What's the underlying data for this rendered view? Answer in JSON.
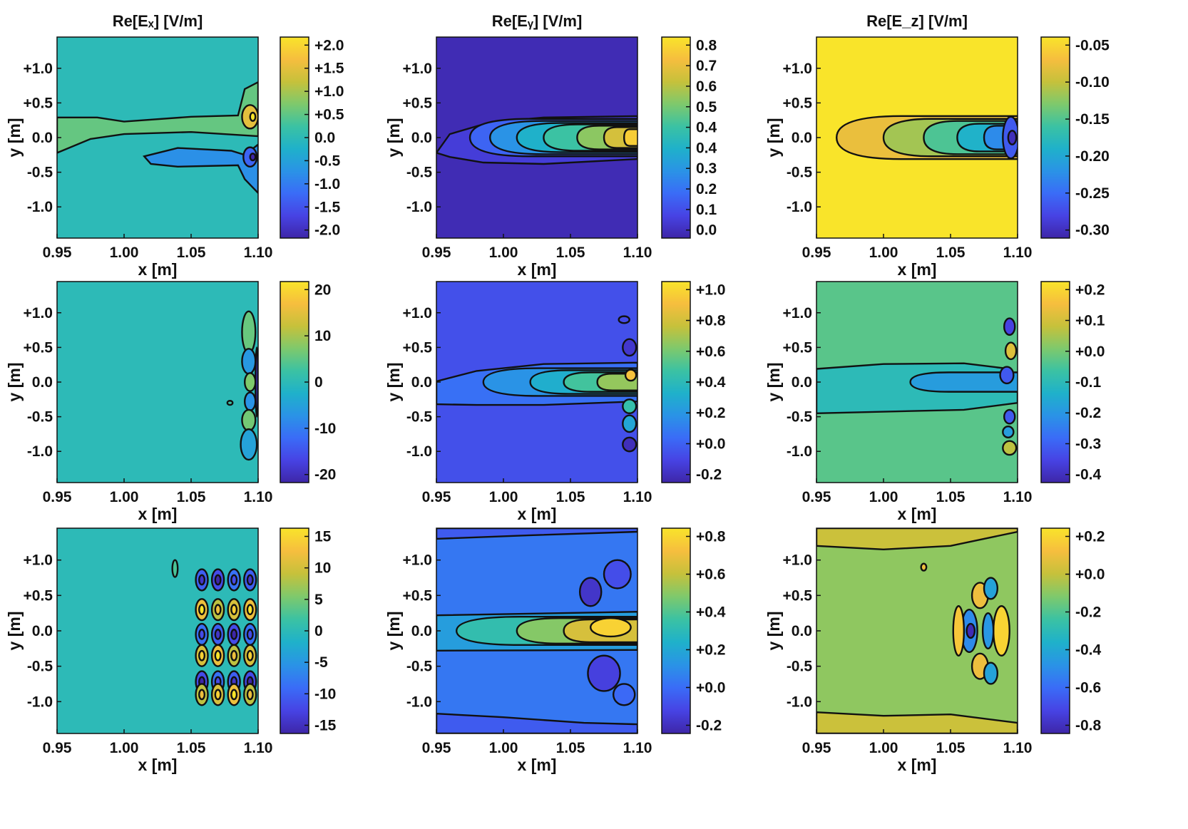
{
  "colors": {
    "colormap": [
      "#3e26a8",
      "#4743e4",
      "#3a6cf7",
      "#2a93e6",
      "#1fb1ca",
      "#3bc2a3",
      "#7ec96c",
      "#c6c13b",
      "#f6be3e",
      "#f9e42a"
    ],
    "contour": "#111111",
    "axis": "#111111"
  },
  "chart_data": [
    {
      "type": "heatmap",
      "title": "Re[Eₓ] [V/m]",
      "xlabel": "x [m]",
      "ylabel": "y [m]",
      "x_ticks": [
        "0.95",
        "1.00",
        "1.05",
        "1.10"
      ],
      "y_ticks": [
        "+1.0",
        "+0.5",
        "0.0",
        "-0.5",
        "-1.0"
      ],
      "xlim": [
        0.95,
        1.1
      ],
      "ylim": [
        -1.45,
        1.45
      ],
      "colorbar_ticks": [
        "+2.0",
        "+1.5",
        "+1.0",
        "+0.5",
        "0.0",
        "-0.5",
        "-1.0",
        "-1.5",
        "-2.0"
      ],
      "clim": [
        -2.0,
        2.0
      ],
      "background_value": 0.0
    },
    {
      "type": "heatmap",
      "title": "Re[Eᵧ] [V/m]",
      "xlabel": "x [m]",
      "ylabel": "y [m]",
      "x_ticks": [
        "0.95",
        "1.00",
        "1.05",
        "1.10"
      ],
      "y_ticks": [
        "+1.0",
        "+0.5",
        "0.0",
        "-0.5",
        "-1.0"
      ],
      "xlim": [
        0.95,
        1.1
      ],
      "ylim": [
        -1.45,
        1.45
      ],
      "colorbar_ticks": [
        "0.8",
        "0.7",
        "0.6",
        "0.5",
        "0.4",
        "0.4",
        "0.3",
        "0.2",
        "0.1",
        "0.0"
      ],
      "clim": [
        0.0,
        0.9
      ],
      "background_value": 0.02
    },
    {
      "type": "heatmap",
      "title": "Re[E_z] [V/m]",
      "xlabel": "x [m]",
      "ylabel": "y [m]",
      "x_ticks": [
        "0.95",
        "1.00",
        "1.05",
        "1.10"
      ],
      "y_ticks": [
        "+1.0",
        "+0.5",
        "0.0",
        "-0.5",
        "-1.0"
      ],
      "xlim": [
        0.95,
        1.1
      ],
      "ylim": [
        -1.45,
        1.45
      ],
      "colorbar_ticks": [
        "-0.05",
        "-0.10",
        "-0.15",
        "-0.20",
        "-0.25",
        "-0.30"
      ],
      "clim": [
        -0.32,
        -0.03
      ],
      "background_value": -0.03
    },
    {
      "type": "heatmap",
      "title": "",
      "xlabel": "x [m]",
      "ylabel": "y [m]",
      "x_ticks": [
        "0.95",
        "1.00",
        "1.05",
        "1.10"
      ],
      "y_ticks": [
        "+1.0",
        "+0.5",
        "0.0",
        "-0.5",
        "-1.0"
      ],
      "xlim": [
        0.95,
        1.1
      ],
      "ylim": [
        -1.45,
        1.45
      ],
      "colorbar_ticks": [
        "20",
        "10",
        "0",
        "-10",
        "-20"
      ],
      "clim": [
        -27,
        27
      ],
      "background_value": 0.0
    },
    {
      "type": "heatmap",
      "title": "",
      "xlabel": "x [m]",
      "ylabel": "y [m]",
      "x_ticks": [
        "0.95",
        "1.00",
        "1.05",
        "1.10"
      ],
      "y_ticks": [
        "+1.0",
        "+0.5",
        "0.0",
        "-0.5",
        "-1.0"
      ],
      "xlim": [
        0.95,
        1.1
      ],
      "ylim": [
        -1.45,
        1.45
      ],
      "colorbar_ticks": [
        "+1.0",
        "+0.8",
        "+0.6",
        "+0.4",
        "+0.2",
        "+0.0",
        "-0.2"
      ],
      "clim": [
        -0.3,
        1.2
      ],
      "background_value": -0.08
    },
    {
      "type": "heatmap",
      "title": "",
      "xlabel": "x [m]",
      "ylabel": "y [m]",
      "x_ticks": [
        "0.95",
        "1.00",
        "1.05",
        "1.10"
      ],
      "y_ticks": [
        "+1.0",
        "+0.5",
        "0.0",
        "-0.5",
        "-1.0"
      ],
      "xlim": [
        0.95,
        1.1
      ],
      "ylim": [
        -1.45,
        1.45
      ],
      "colorbar_ticks": [
        "+0.2",
        "+0.1",
        "+0.0",
        "-0.1",
        "-0.2",
        "-0.3",
        "-0.4"
      ],
      "clim": [
        -0.48,
        0.28
      ],
      "background_value": -0.02
    },
    {
      "type": "heatmap",
      "title": "",
      "xlabel": "x [m]",
      "ylabel": "y [m]",
      "x_ticks": [
        "0.95",
        "1.00",
        "1.05",
        "1.10"
      ],
      "y_ticks": [
        "+1.0",
        "+0.5",
        "0.0",
        "-0.5",
        "-1.0"
      ],
      "xlim": [
        0.95,
        1.1
      ],
      "ylim": [
        -1.45,
        1.45
      ],
      "colorbar_ticks": [
        "15",
        "10",
        "5",
        "0",
        "-5",
        "-10",
        "-15"
      ],
      "clim": [
        -19,
        19
      ],
      "background_value": 0.0
    },
    {
      "type": "heatmap",
      "title": "",
      "xlabel": "x [m]",
      "ylabel": "y [m]",
      "x_ticks": [
        "0.95",
        "1.00",
        "1.05",
        "1.10"
      ],
      "y_ticks": [
        "+1.0",
        "+0.5",
        "0.0",
        "-0.5",
        "-1.0"
      ],
      "xlim": [
        0.95,
        1.1
      ],
      "ylim": [
        -1.45,
        1.45
      ],
      "colorbar_ticks": [
        "+0.8",
        "+0.6",
        "+0.4",
        "+0.2",
        "+0.0",
        "-0.2"
      ],
      "clim": [
        -0.38,
        0.92
      ],
      "background_value": -0.05
    },
    {
      "type": "heatmap",
      "title": "",
      "xlabel": "x [m]",
      "ylabel": "y [m]",
      "x_ticks": [
        "0.95",
        "1.00",
        "1.05",
        "1.10"
      ],
      "y_ticks": [
        "+1.0",
        "+0.5",
        "0.0",
        "-0.5",
        "-1.0"
      ],
      "xlim": [
        0.95,
        1.1
      ],
      "ylim": [
        -1.45,
        1.45
      ],
      "colorbar_ticks": [
        "+0.2",
        "+0.0",
        "-0.2",
        "-0.4",
        "-0.6",
        "-0.8"
      ],
      "clim": [
        -0.88,
        0.36
      ],
      "background_value": -0.02
    }
  ]
}
